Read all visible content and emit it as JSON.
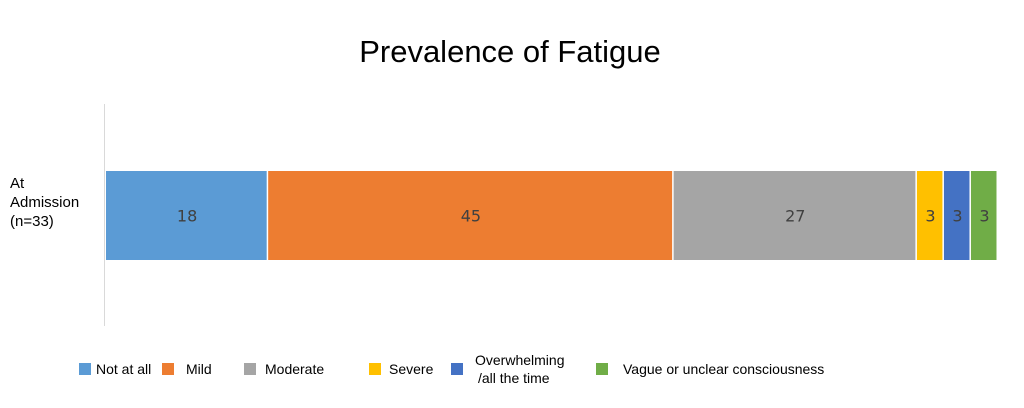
{
  "chart_data": {
    "type": "bar",
    "orientation": "horizontal",
    "stacked": true,
    "title": "Prevalence of Fatigue",
    "categories": [
      "At Admission (n=33)"
    ],
    "category_label_lines": [
      "At",
      "Admission",
      "(n=33)"
    ],
    "xlabel": "",
    "ylabel": "",
    "xlim": [
      0,
      99
    ],
    "grid": false,
    "legend_position": "bottom",
    "series": [
      {
        "name": "Not at all",
        "values": [
          18
        ],
        "color": "#5B9BD5",
        "label_color": "#404040"
      },
      {
        "name": "Mild",
        "values": [
          45
        ],
        "color": "#ED7D31",
        "label_color": "#404040"
      },
      {
        "name": "Moderate",
        "values": [
          27
        ],
        "color": "#A5A5A5",
        "label_color": "#404040"
      },
      {
        "name": "Severe",
        "values": [
          3
        ],
        "color": "#FFC000",
        "label_color": "#404040"
      },
      {
        "name": "Overwhelming /all the time",
        "legend_lines": [
          "Overwhelming",
          "/all the time"
        ],
        "values": [
          3
        ],
        "color": "#4472C4",
        "label_color": "#404040"
      },
      {
        "name": "Vague or unclear consciousness",
        "values": [
          3
        ],
        "color": "#70AD47",
        "label_color": "#404040"
      }
    ]
  }
}
